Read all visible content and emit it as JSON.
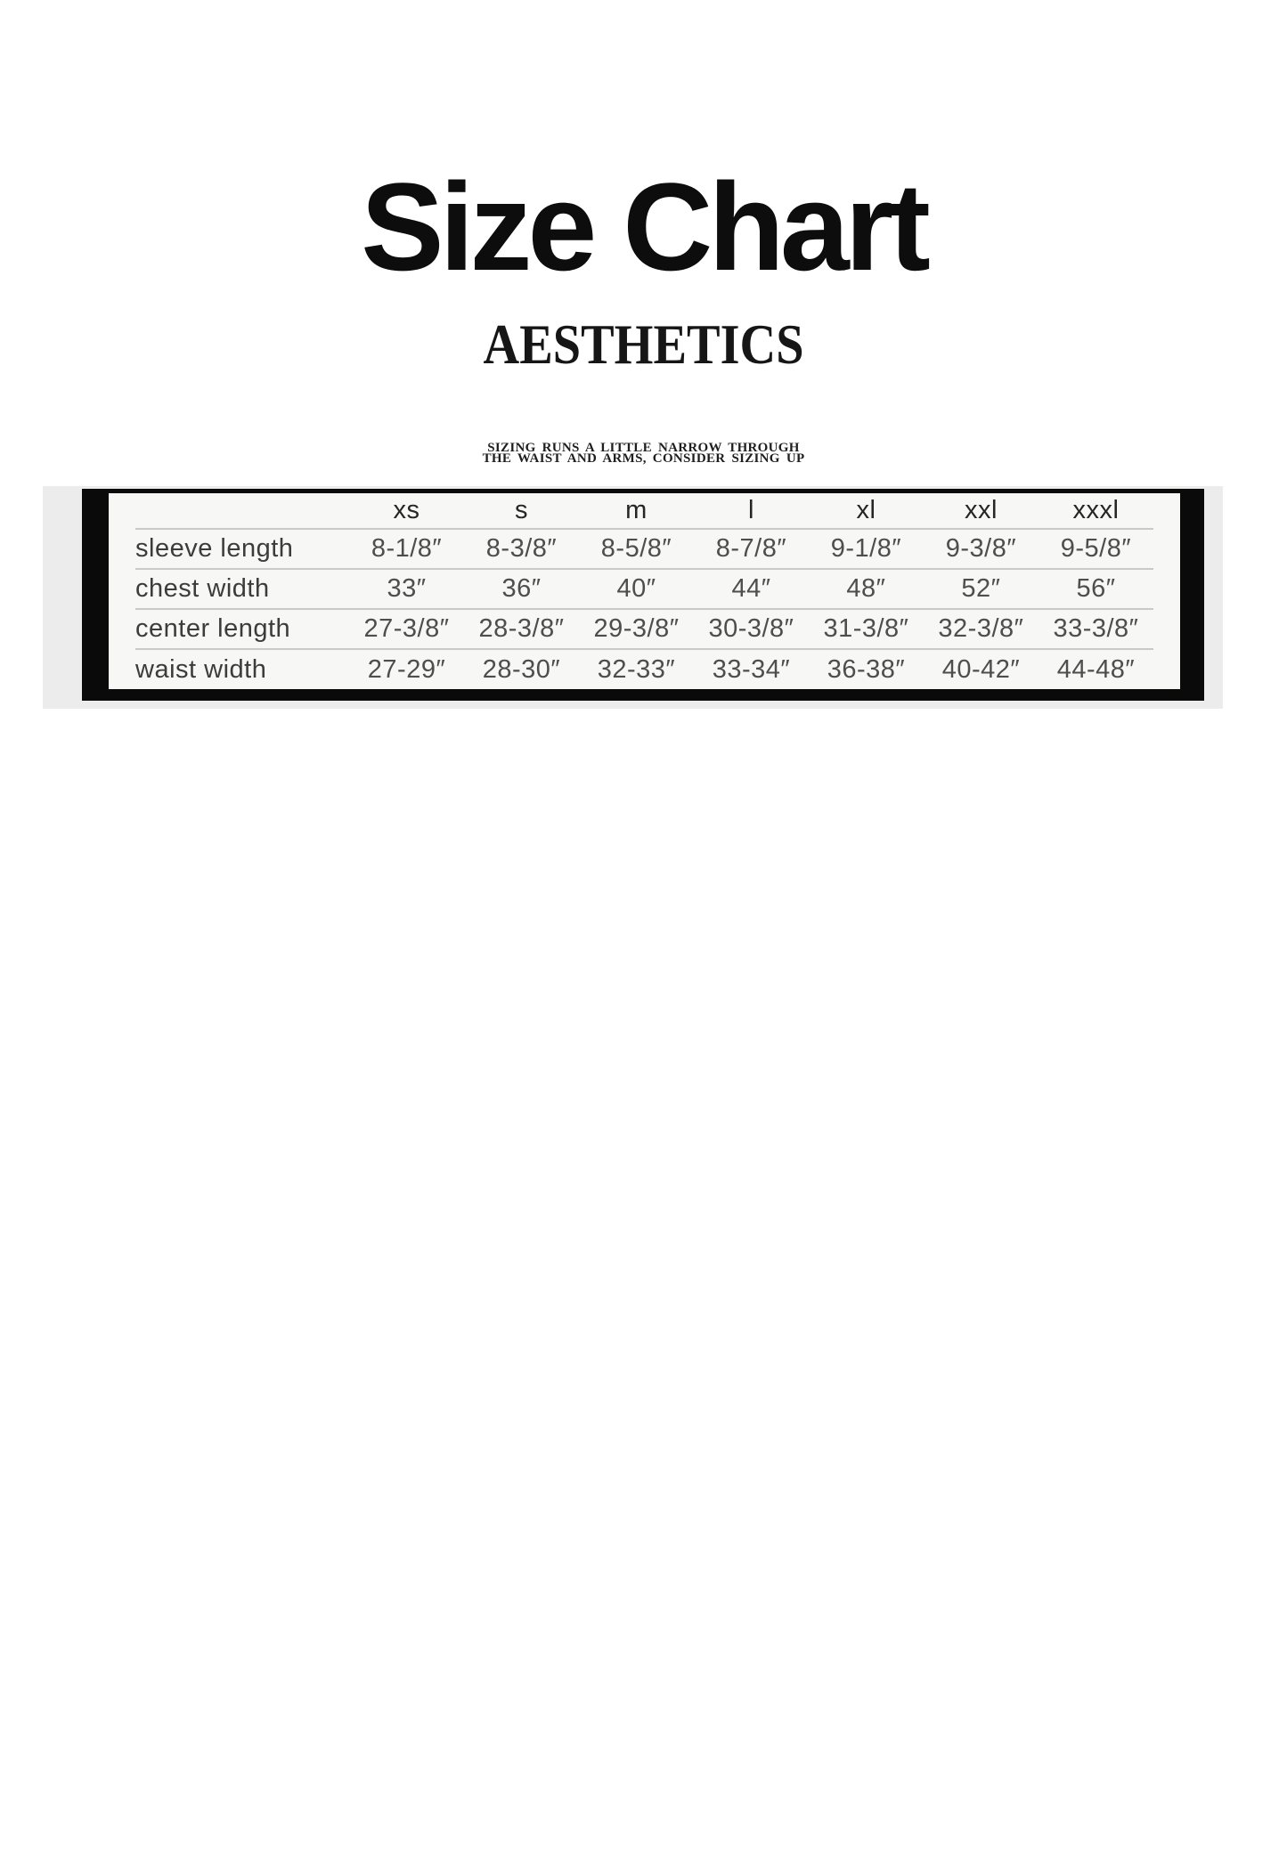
{
  "page": {
    "title": "Size Chart",
    "brand": "AESTHETICS",
    "note": {
      "line1": "SIZING RUNS A LITTLE NARROW THROUGH",
      "line2": "THE WAIST AND ARMS, CONSIDER SIZING UP"
    },
    "colors": {
      "page_background": "#ffffff",
      "panel_background": "#ececec",
      "table_background": "#f7f7f6",
      "frame_border": "#0a0a0a",
      "separator_line": "#c9c9c9",
      "text_dark": "#0d0d0d",
      "text_gray": "#4e4e4e"
    }
  },
  "chart_data": {
    "type": "table",
    "title": "Size Chart",
    "columns": [
      "xs",
      "s",
      "m",
      "l",
      "xl",
      "xxl",
      "xxxl"
    ],
    "rows": [
      {
        "label": "sleeve length",
        "values": [
          "8-1/8″",
          "8-3/8″",
          "8-5/8″",
          "8-7/8″",
          "9-1/8″",
          "9-3/8″",
          "9-5/8″"
        ]
      },
      {
        "label": "chest width",
        "values": [
          "33″",
          "36″",
          "40″",
          "44″",
          "48″",
          "52″",
          "56″"
        ]
      },
      {
        "label": "center length",
        "values": [
          "27-3/8″",
          "28-3/8″",
          "29-3/8″",
          "30-3/8″",
          "31-3/8″",
          "32-3/8″",
          "33-3/8″"
        ]
      },
      {
        "label": "waist width",
        "values": [
          "27-29″",
          "28-30″",
          "32-33″",
          "33-34″",
          "36-38″",
          "40-42″",
          "44-48″"
        ]
      }
    ]
  }
}
